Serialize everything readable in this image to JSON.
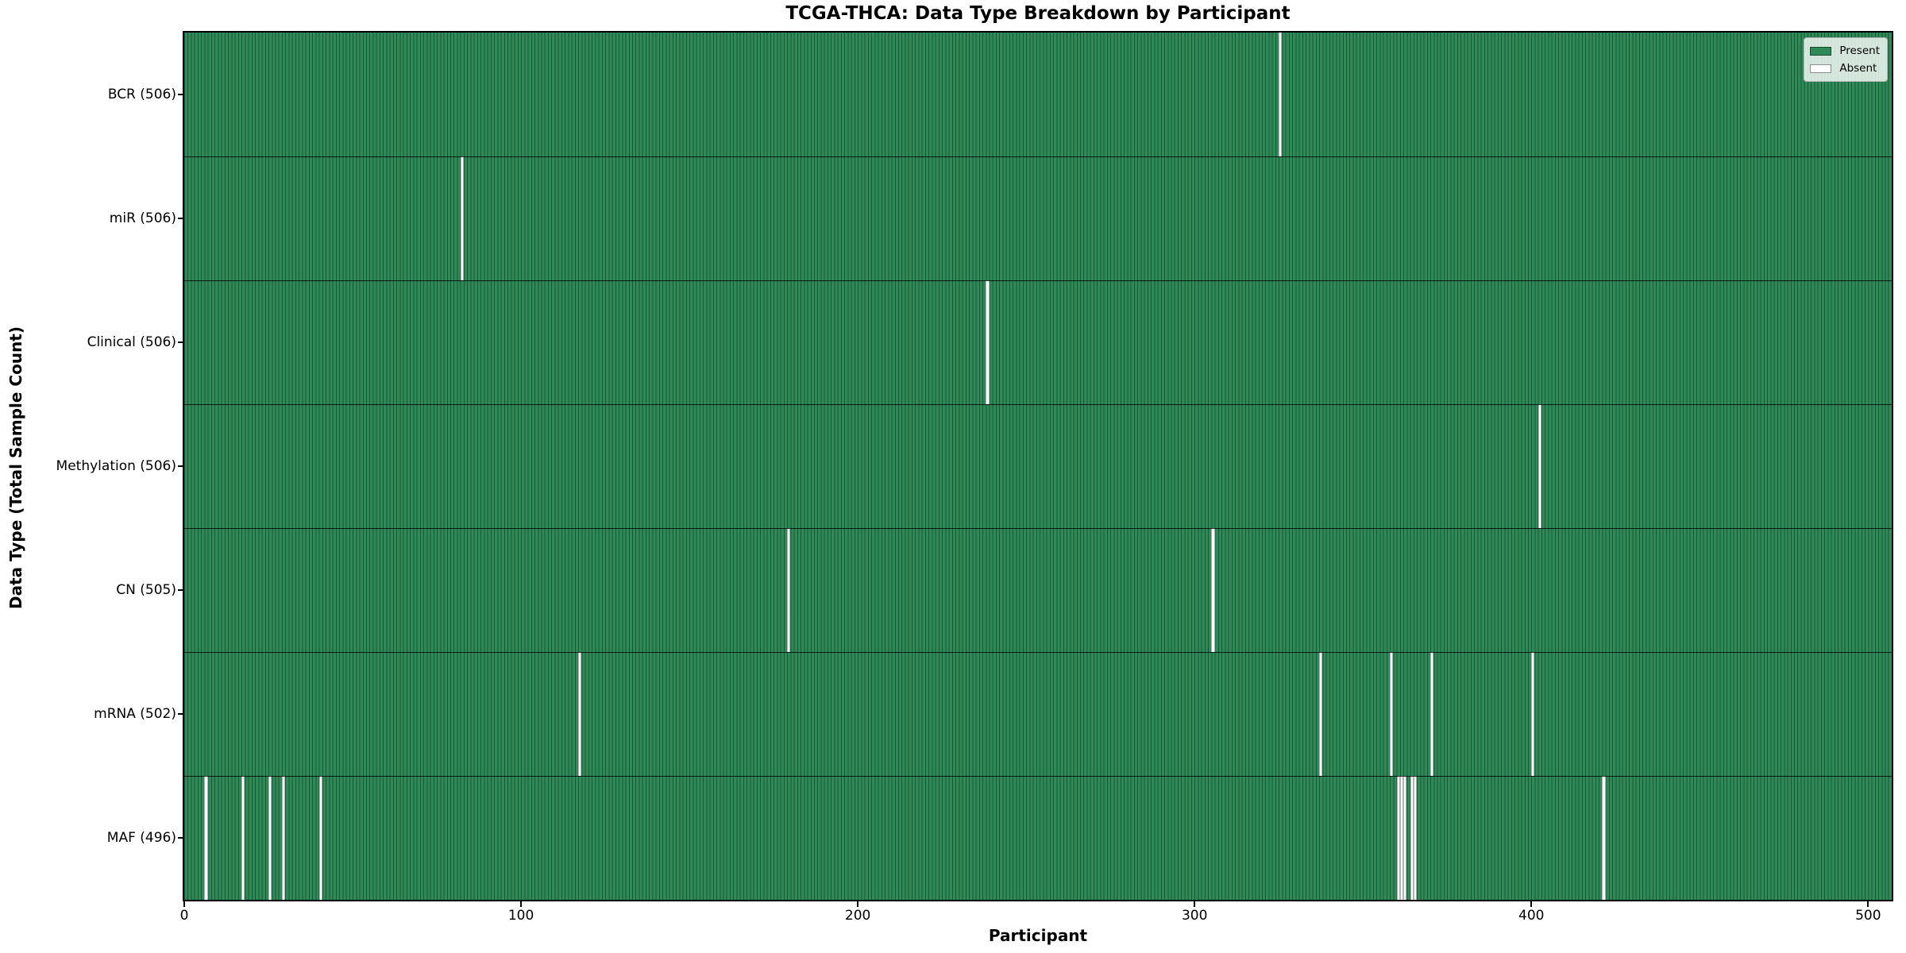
{
  "chart_data": {
    "type": "heatmap",
    "title": "TCGA-THCA: Data Type Breakdown by Participant",
    "xlabel": "Participant",
    "ylabel": "Data Type (Total Sample Count)",
    "x_ticks": [
      0,
      100,
      200,
      300,
      400,
      500
    ],
    "xlim": [
      0,
      507
    ],
    "n_participants": 507,
    "grid": false,
    "legend": {
      "position": "upper right",
      "entries": [
        {
          "label": "Present",
          "color": "#2e8b57"
        },
        {
          "label": "Absent",
          "color": "#ffffff"
        }
      ]
    },
    "colors": {
      "present": "#2e8b57",
      "absent": "#ffffff",
      "bar_edge": "rgba(0,0,0,0.38)"
    },
    "rows": [
      {
        "label": "BCR (506)",
        "name": "BCR",
        "present_count": 506,
        "absent_participants": [
          325
        ]
      },
      {
        "label": "miR (506)",
        "name": "miR",
        "present_count": 506,
        "absent_participants": [
          82
        ]
      },
      {
        "label": "Clinical (506)",
        "name": "Clinical",
        "present_count": 506,
        "absent_participants": [
          238
        ]
      },
      {
        "label": "Methylation (506)",
        "name": "Methylation",
        "present_count": 506,
        "absent_participants": [
          402
        ]
      },
      {
        "label": "CN (505)",
        "name": "CN",
        "present_count": 505,
        "absent_participants": [
          179,
          305
        ]
      },
      {
        "label": "mRNA (502)",
        "name": "mRNA",
        "present_count": 502,
        "absent_participants": [
          117,
          337,
          358,
          370,
          400
        ]
      },
      {
        "label": "MAF (496)",
        "name": "MAF",
        "present_count": 496,
        "absent_participants": [
          6,
          17,
          25,
          29,
          40,
          360,
          361,
          362,
          364,
          365,
          421
        ]
      }
    ]
  }
}
